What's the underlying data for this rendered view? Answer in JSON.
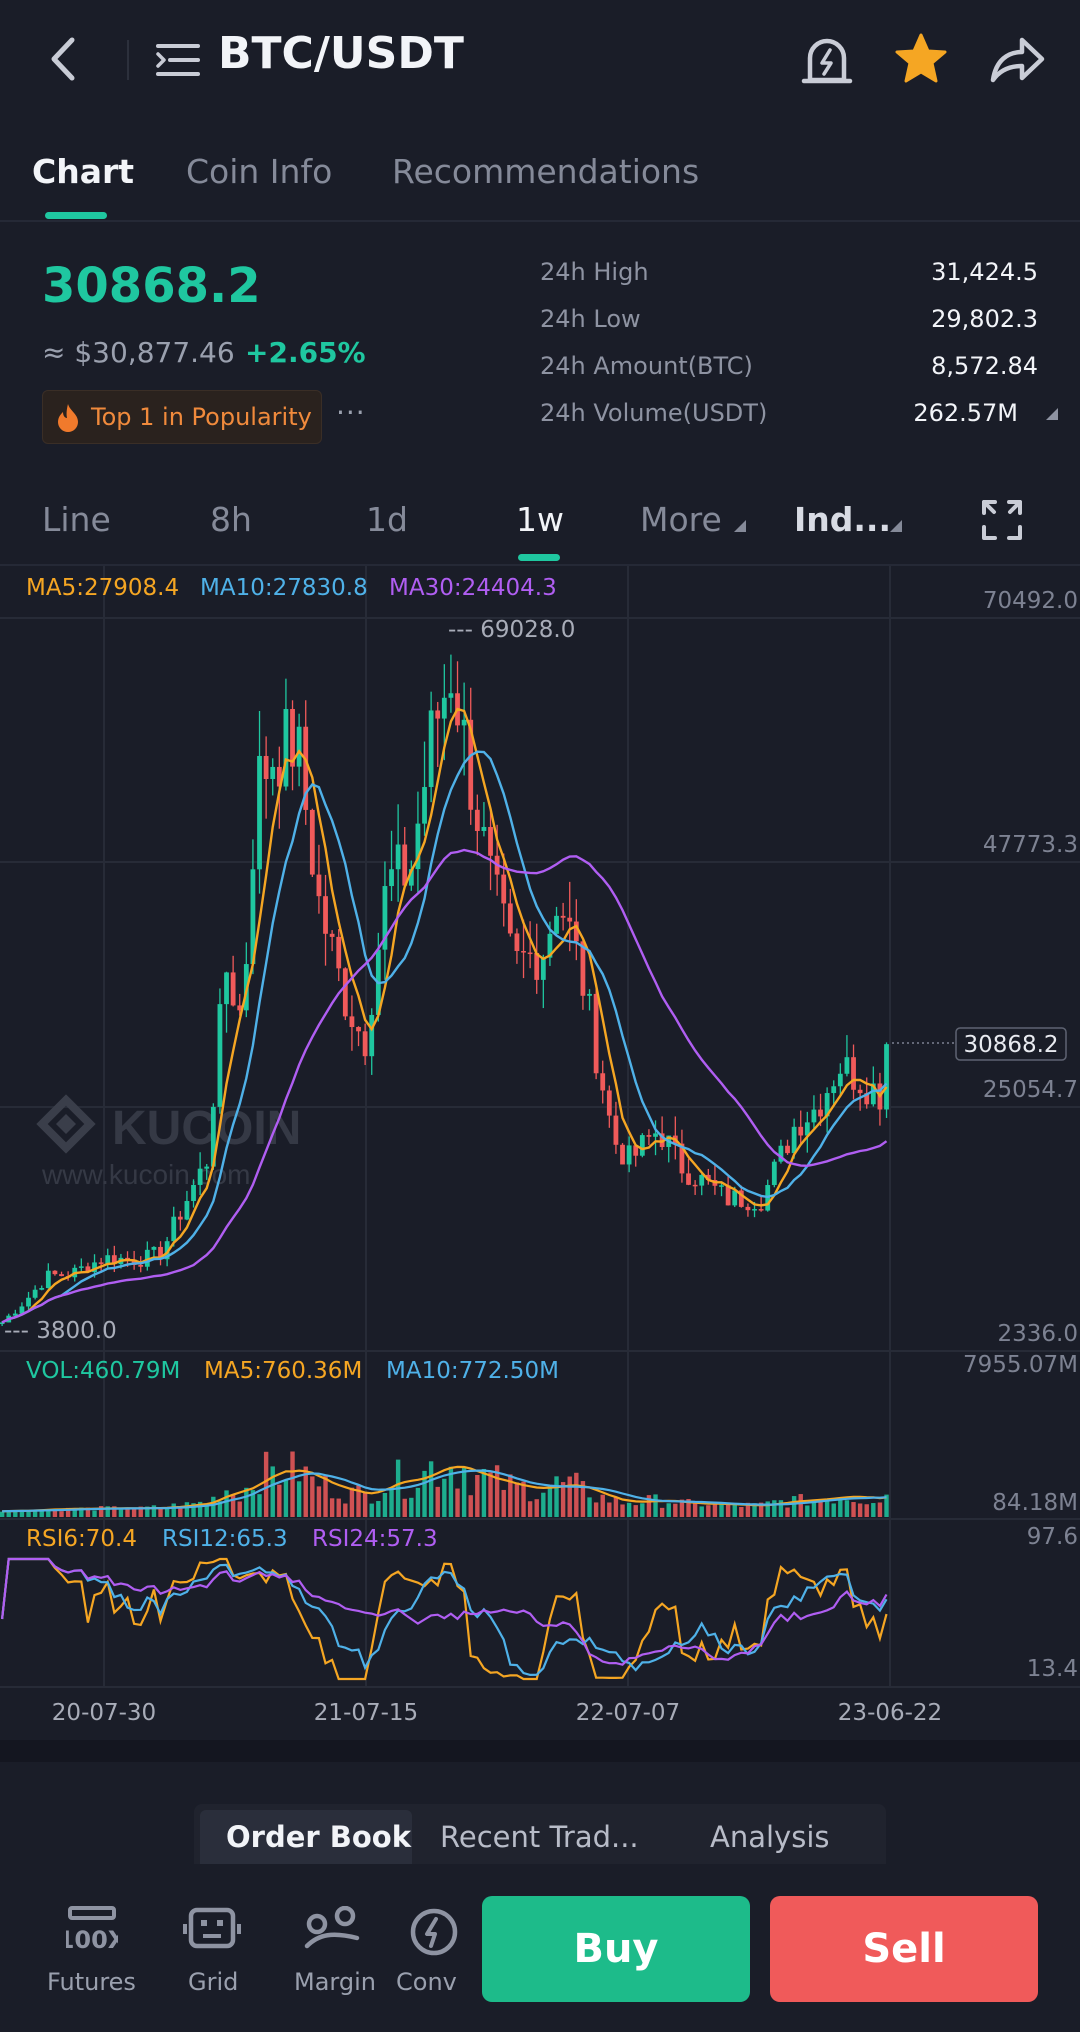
{
  "header": {
    "pair": "BTC/USDT",
    "icons": [
      "back-arrow-icon",
      "menu-lines-icon",
      "price-alert-bell-icon",
      "star-favorite-icon",
      "share-arrow-icon"
    ],
    "favorite_color": "#f5a623"
  },
  "tabs": [
    {
      "label": "Chart",
      "active": true
    },
    {
      "label": "Coin Info",
      "active": false
    },
    {
      "label": "Recommendations",
      "active": false
    }
  ],
  "ticker": {
    "last_price": "30868.2",
    "fiat_price": "≈ $30,877.46",
    "change": "+2.65%",
    "badge": "Top 1 in Popularity",
    "badge_more": "···",
    "stats": [
      {
        "label": "24h High",
        "value": "31,424.5"
      },
      {
        "label": "24h Low",
        "value": "29,802.3"
      },
      {
        "label": "24h Amount(BTC)",
        "value": "8,572.84"
      },
      {
        "label": "24h Volume(USDT)",
        "value": "262.57M"
      }
    ],
    "up_color": "#1fc7a0",
    "down_color": "#f05a5a"
  },
  "timeframes": [
    {
      "label": "Line",
      "active": false
    },
    {
      "label": "8h",
      "active": false
    },
    {
      "label": "1d",
      "active": false
    },
    {
      "label": "1w",
      "active": true
    },
    {
      "label": "More",
      "active": false
    },
    {
      "label": "Ind...",
      "active": false
    }
  ],
  "chart_data": {
    "type": "line",
    "ma_legend": {
      "ma5": "MA5:27908.4",
      "ma10": "MA10:27830.8",
      "ma30": "MA30:24404.3"
    },
    "price_axis": [
      "70492.0",
      "47773.3",
      "25054.7",
      "2336.0"
    ],
    "ylim": [
      2336.0,
      70492.0
    ],
    "high_marker": "69028.0",
    "low_marker": "3800.0",
    "current_price": "30868.2",
    "watermark": "KUCOIN",
    "watermark_url": "www.kucoin.com",
    "x_ticks": [
      "20-07-30",
      "21-07-15",
      "22-07-07",
      "23-06-22"
    ],
    "series": [
      {
        "name": "MA5",
        "color": "#f5a623"
      },
      {
        "name": "MA10",
        "color": "#4fb1e8"
      },
      {
        "name": "MA30",
        "color": "#b05ef2"
      }
    ],
    "price_path": [
      {
        "date": "2020-03-15",
        "close": 5000
      },
      {
        "date": "2020-04-15",
        "close": 7000
      },
      {
        "date": "2020-05-15",
        "close": 9300
      },
      {
        "date": "2020-06-15",
        "close": 9500
      },
      {
        "date": "2020-07-30",
        "close": 11000
      },
      {
        "date": "2020-09-15",
        "close": 10800
      },
      {
        "date": "2020-10-15",
        "close": 11500
      },
      {
        "date": "2020-11-15",
        "close": 16000
      },
      {
        "date": "2020-12-15",
        "close": 20000
      },
      {
        "date": "2021-01-10",
        "close": 38000
      },
      {
        "date": "2021-02-01",
        "close": 33000
      },
      {
        "date": "2021-02-20",
        "close": 55000
      },
      {
        "date": "2021-03-15",
        "close": 58000
      },
      {
        "date": "2021-04-15",
        "close": 59000
      },
      {
        "date": "2021-05-15",
        "close": 44000
      },
      {
        "date": "2021-06-15",
        "close": 36000
      },
      {
        "date": "2021-07-15",
        "close": 31000
      },
      {
        "date": "2021-08-15",
        "close": 46000
      },
      {
        "date": "2021-09-15",
        "close": 47000
      },
      {
        "date": "2021-10-15",
        "close": 60000
      },
      {
        "date": "2021-11-10",
        "close": 66000
      },
      {
        "date": "2021-12-01",
        "close": 57000
      },
      {
        "date": "2022-01-01",
        "close": 46000
      },
      {
        "date": "2022-02-01",
        "close": 38000
      },
      {
        "date": "2022-03-15",
        "close": 40000
      },
      {
        "date": "2022-04-01",
        "close": 45000
      },
      {
        "date": "2022-05-01",
        "close": 38000
      },
      {
        "date": "2022-06-15",
        "close": 22000
      },
      {
        "date": "2022-07-07",
        "close": 20000
      },
      {
        "date": "2022-08-15",
        "close": 23000
      },
      {
        "date": "2022-09-15",
        "close": 19500
      },
      {
        "date": "2022-11-15",
        "close": 16500
      },
      {
        "date": "2023-01-01",
        "close": 16500
      },
      {
        "date": "2023-02-15",
        "close": 23500
      },
      {
        "date": "2023-03-15",
        "close": 25000
      },
      {
        "date": "2023-04-15",
        "close": 29000
      },
      {
        "date": "2023-05-15",
        "close": 27500
      },
      {
        "date": "2023-06-15",
        "close": 26000
      },
      {
        "date": "2023-06-22",
        "close": 30868.2
      }
    ]
  },
  "volume": {
    "legend_vol": "VOL:460.79M",
    "legend_ma5": "MA5:760.36M",
    "legend_ma10": "MA10:772.50M",
    "axis_top": "7955.07M",
    "axis_bottom": "84.18M"
  },
  "rsi": {
    "legend_rsi6": "RSI6:70.4",
    "legend_rsi12": "RSI12:65.3",
    "legend_rsi24": "RSI24:57.3",
    "axis_top": "97.6",
    "axis_bottom": "13.4"
  },
  "order_tabs": [
    {
      "label": "Order Book",
      "active": true
    },
    {
      "label": "Recent Trad...",
      "active": false
    },
    {
      "label": "Analysis",
      "active": false
    }
  ],
  "bottom_bar": {
    "items": [
      {
        "label": "Futures",
        "icon": "futures-100x-icon"
      },
      {
        "label": "Grid",
        "icon": "grid-bot-icon"
      },
      {
        "label": "Margin",
        "icon": "margin-icon"
      },
      {
        "label": "Conv",
        "icon": "convert-icon"
      }
    ],
    "buy": "Buy",
    "sell": "Sell"
  }
}
